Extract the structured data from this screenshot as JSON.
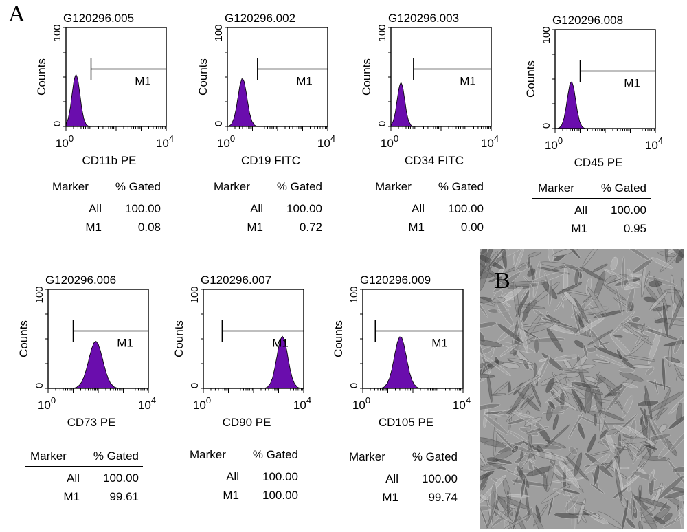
{
  "panel_a_label": "A",
  "panel_b_label": "B",
  "table_header": {
    "marker": "Marker",
    "gated": "% Gated"
  },
  "colors": {
    "fill": "#6a0dad",
    "line": "#000000"
  },
  "chart_data": [
    {
      "type": "histogram",
      "sample": "G120296.005",
      "xlabel": "CD11b PE",
      "ylabel": "Counts",
      "xscale": "log",
      "xlim_exp": [
        0,
        4
      ],
      "xtick_base": "10",
      "xtick_exps": [
        "0",
        "4"
      ],
      "ylim": [
        0,
        100
      ],
      "yticks": [
        "0",
        "100"
      ],
      "gate": {
        "name": "M1",
        "start_decade": 1.0,
        "end_decade": 4.0
      },
      "peak_decade": 0.4,
      "peak_height": 52,
      "peak_width": 0.16,
      "table": [
        {
          "marker": "All",
          "value": "100.00"
        },
        {
          "marker": "M1",
          "value": "0.08"
        }
      ]
    },
    {
      "type": "histogram",
      "sample": "G120296.002",
      "xlabel": "CD19 FITC",
      "ylabel": "Counts",
      "xscale": "log",
      "xlim_exp": [
        0,
        4
      ],
      "xtick_base": "10",
      "xtick_exps": [
        "0",
        "4"
      ],
      "ylim": [
        0,
        100
      ],
      "yticks": [
        "0",
        "100"
      ],
      "gate": {
        "name": "M1",
        "start_decade": 1.2,
        "end_decade": 4.0
      },
      "peak_decade": 0.6,
      "peak_height": 48,
      "peak_width": 0.18,
      "table": [
        {
          "marker": "All",
          "value": "100.00"
        },
        {
          "marker": "M1",
          "value": "0.72"
        }
      ]
    },
    {
      "type": "histogram",
      "sample": "G120296.003",
      "xlabel": "CD34 FITC",
      "ylabel": "Counts",
      "xscale": "log",
      "xlim_exp": [
        0,
        4
      ],
      "xtick_base": "10",
      "xtick_exps": [
        "0",
        "4"
      ],
      "ylim": [
        0,
        100
      ],
      "yticks": [
        "0",
        "100"
      ],
      "gate": {
        "name": "M1",
        "start_decade": 0.9,
        "end_decade": 4.0
      },
      "peak_decade": 0.4,
      "peak_height": 44,
      "peak_width": 0.15,
      "table": [
        {
          "marker": "All",
          "value": "100.00"
        },
        {
          "marker": "M1",
          "value": "0.00"
        }
      ]
    },
    {
      "type": "histogram",
      "sample": "G120296.008",
      "xlabel": "CD45 PE",
      "ylabel": "Counts",
      "xscale": "log",
      "xlim_exp": [
        0,
        4
      ],
      "xtick_base": "10",
      "xtick_exps": [
        "0",
        "4"
      ],
      "ylim": [
        0,
        100
      ],
      "yticks": [
        "0",
        "100"
      ],
      "gate": {
        "name": "M1",
        "start_decade": 1.0,
        "end_decade": 4.0
      },
      "peak_decade": 0.65,
      "peak_height": 47,
      "peak_width": 0.17,
      "table": [
        {
          "marker": "All",
          "value": "100.00"
        },
        {
          "marker": "M1",
          "value": "0.95"
        }
      ]
    },
    {
      "type": "histogram",
      "sample": "G120296.006",
      "xlabel": "CD73 PE",
      "ylabel": "Counts",
      "xscale": "log",
      "xlim_exp": [
        0,
        4
      ],
      "xtick_base": "10",
      "xtick_exps": [
        "0",
        "4"
      ],
      "ylim": [
        0,
        100
      ],
      "yticks": [
        "0",
        "100"
      ],
      "gate": {
        "name": "M1",
        "start_decade": 1.0,
        "end_decade": 4.0
      },
      "peak_decade": 1.9,
      "peak_height": 47,
      "peak_width": 0.28,
      "table": [
        {
          "marker": "All",
          "value": "100.00"
        },
        {
          "marker": "M1",
          "value": "99.61"
        }
      ]
    },
    {
      "type": "histogram",
      "sample": "G120296.007",
      "xlabel": "CD90 PE",
      "ylabel": "Counts",
      "xscale": "log",
      "xlim_exp": [
        0,
        4
      ],
      "xtick_base": "10",
      "xtick_exps": [
        "0",
        "4"
      ],
      "ylim": [
        0,
        100
      ],
      "yticks": [
        "0",
        "100"
      ],
      "gate": {
        "name": "M1",
        "start_decade": 0.75,
        "end_decade": 4.0
      },
      "peak_decade": 3.15,
      "peak_height": 52,
      "peak_width": 0.22,
      "table": [
        {
          "marker": "All",
          "value": "100.00"
        },
        {
          "marker": "M1",
          "value": "100.00"
        }
      ]
    },
    {
      "type": "histogram",
      "sample": "G120296.009",
      "xlabel": "CD105 PE",
      "ylabel": "Counts",
      "xscale": "log",
      "xlim_exp": [
        0,
        4
      ],
      "xtick_base": "10",
      "xtick_exps": [
        "0",
        "4"
      ],
      "ylim": [
        0,
        100
      ],
      "yticks": [
        "0",
        "100"
      ],
      "gate": {
        "name": "M1",
        "start_decade": 0.5,
        "end_decade": 4.0
      },
      "peak_decade": 1.5,
      "peak_height": 52,
      "peak_width": 0.24,
      "table": [
        {
          "marker": "All",
          "value": "100.00"
        },
        {
          "marker": "M1",
          "value": "99.74"
        }
      ]
    }
  ]
}
